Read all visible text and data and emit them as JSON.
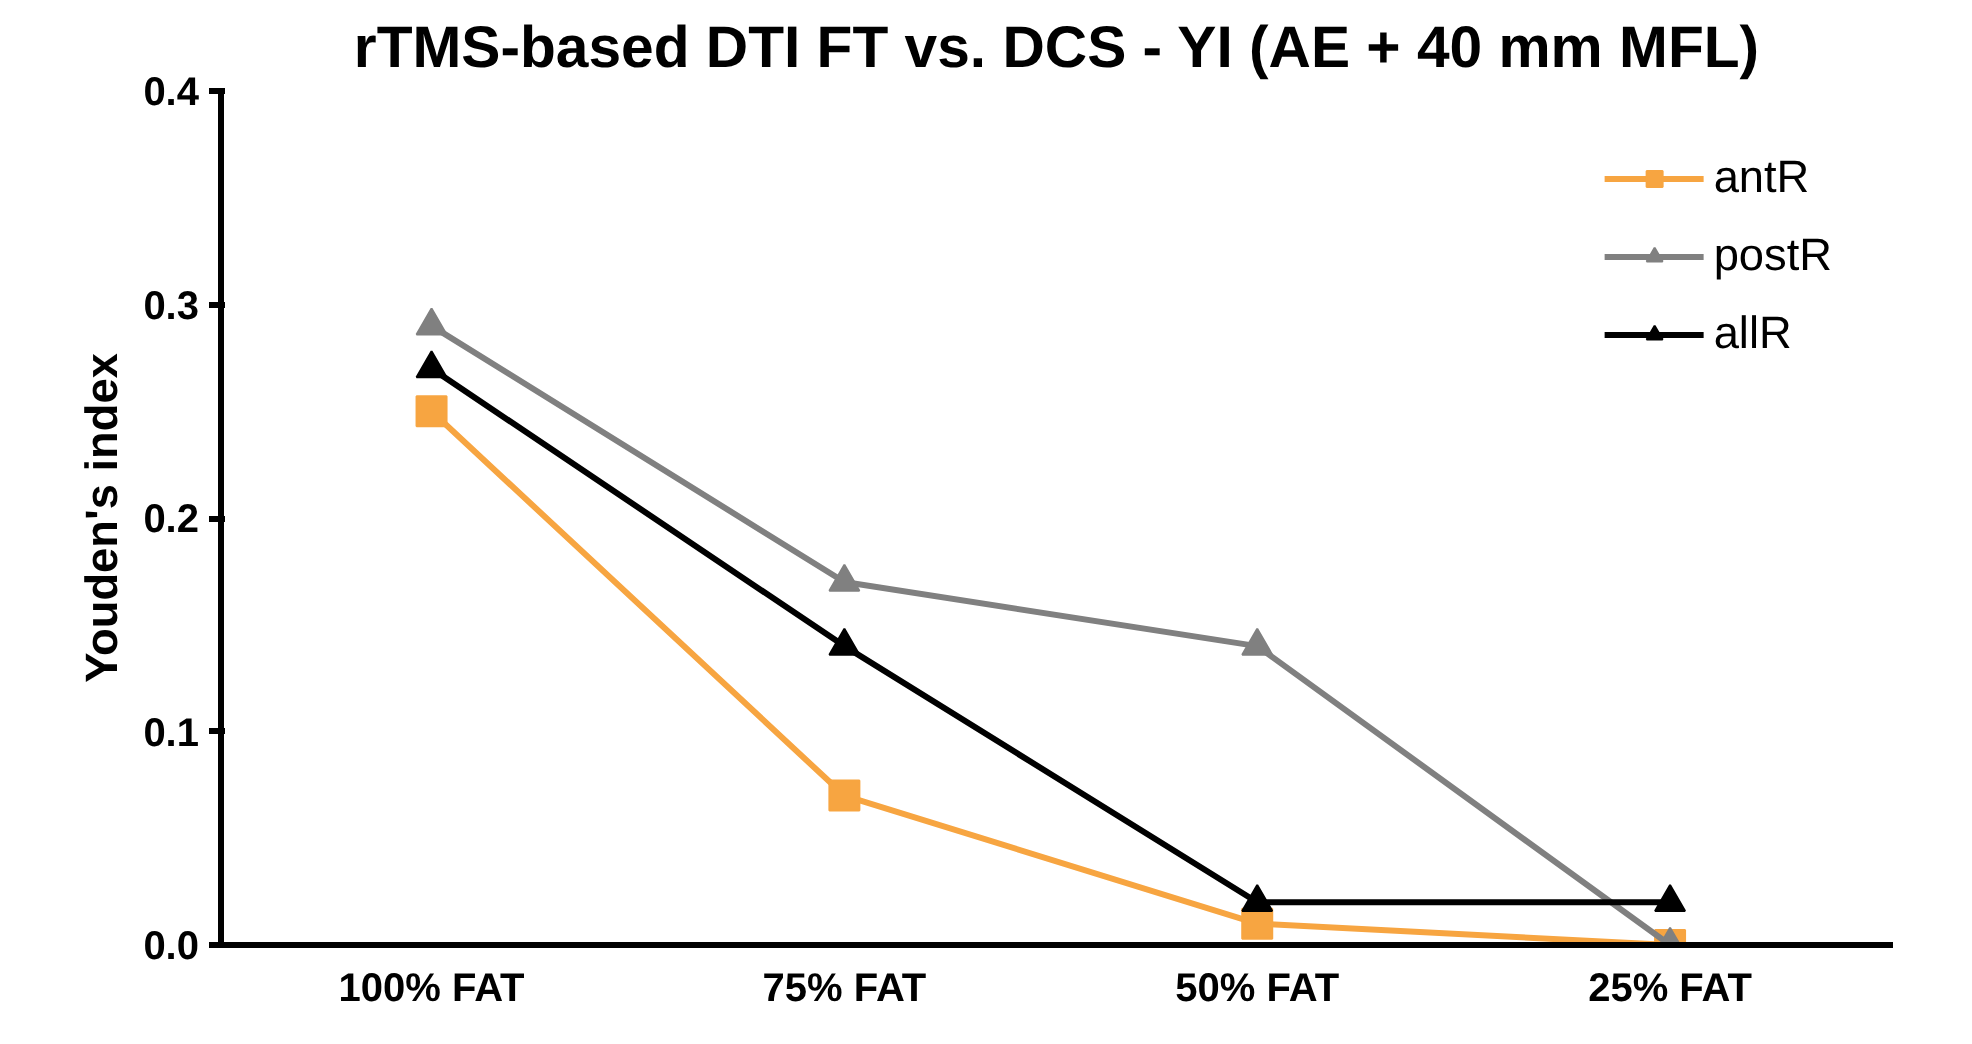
{
  "chart_data": {
    "type": "line",
    "title": "rTMS-based DTI FT vs. DCS - YI (AE + 40 mm MFL)",
    "ylabel": "Youden's index",
    "categories": [
      "100% FAT",
      "75% FAT",
      "50% FAT",
      "25% FAT"
    ],
    "series": [
      {
        "name": "antR",
        "color": "#f7a541",
        "marker": "square",
        "values": [
          0.25,
          0.07,
          0.01,
          0.0
        ]
      },
      {
        "name": "postR",
        "color": "#808080",
        "marker": "triangle",
        "values": [
          0.29,
          0.17,
          0.14,
          0.0
        ]
      },
      {
        "name": "allR",
        "color": "#000000",
        "marker": "triangle",
        "values": [
          0.27,
          0.14,
          0.02,
          0.02
        ]
      }
    ],
    "ylim": [
      0,
      0.4
    ],
    "yticks": [
      {
        "value": 0,
        "label": "0.0"
      },
      {
        "value": 0.1,
        "label": "0.1"
      },
      {
        "value": 0.2,
        "label": "0.2"
      },
      {
        "value": 0.3,
        "label": "0.3"
      },
      {
        "value": 0.4,
        "label": "0.4"
      }
    ],
    "grid": false,
    "legend": "top right",
    "line_style": "solid"
  }
}
